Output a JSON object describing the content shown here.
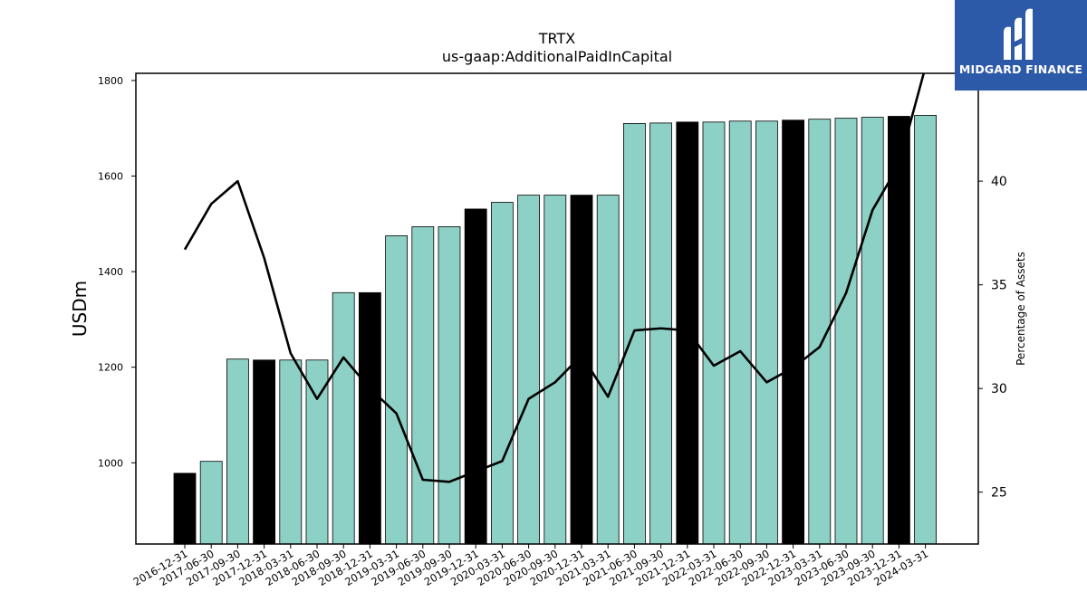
{
  "chart_data": {
    "type": "bar",
    "title": "TRTX",
    "subtitle": "us-gaap:AdditionalPaidInCapital",
    "ylabel": "USDm",
    "y2label": "Percentage of Assets",
    "ylim": [
      830,
      1815
    ],
    "y2lim": [
      22.5,
      45.2
    ],
    "yticks": [
      1000,
      1200,
      1400,
      1600,
      1800
    ],
    "y2ticks": [
      25,
      30,
      35,
      40
    ],
    "categories": [
      "2016-12-31",
      "2017-06-30",
      "2017-09-30",
      "2017-12-31",
      "2018-03-31",
      "2018-06-30",
      "2018-09-30",
      "2018-12-31",
      "2019-03-31",
      "2019-06-30",
      "2019-09-30",
      "2019-12-31",
      "2020-03-31",
      "2020-06-30",
      "2020-09-30",
      "2020-12-31",
      "2021-03-31",
      "2021-06-30",
      "2021-09-30",
      "2021-12-31",
      "2022-03-31",
      "2022-06-30",
      "2022-09-30",
      "2022-12-31",
      "2023-03-31",
      "2023-06-30",
      "2023-09-30",
      "2023-12-31",
      "2024-03-31"
    ],
    "series": [
      {
        "type": "bar",
        "values": [
          978,
          1003,
          1217,
          1215,
          1215,
          1215,
          1356,
          1356,
          1475,
          1494,
          1494,
          1531,
          1545,
          1560,
          1560,
          1560,
          1560,
          1710,
          1711,
          1713,
          1713,
          1715,
          1715,
          1717,
          1719,
          1721,
          1723,
          1725,
          1727
        ],
        "highlight": [
          true,
          false,
          false,
          true,
          false,
          false,
          false,
          true,
          false,
          false,
          false,
          true,
          false,
          false,
          false,
          true,
          false,
          false,
          false,
          true,
          false,
          false,
          false,
          true,
          false,
          false,
          false,
          true,
          false
        ]
      },
      {
        "type": "line",
        "axis": "right",
        "values": [
          36.7,
          38.9,
          40.0,
          36.3,
          31.7,
          29.5,
          31.5,
          30.0,
          28.8,
          25.6,
          25.5,
          26.0,
          26.5,
          29.5,
          30.3,
          31.6,
          29.6,
          32.8,
          32.9,
          32.8,
          31.1,
          31.8,
          30.3,
          31.0,
          32.0,
          34.6,
          38.6,
          40.8,
          45.5
        ]
      }
    ],
    "colors": {
      "bar": "#8dd0c5",
      "bar_highlight": "#000000",
      "line": "#000000",
      "axis": "#000000"
    }
  },
  "logo": {
    "text": "MIDGARD FINANCE",
    "background": "#2d5aa8"
  }
}
